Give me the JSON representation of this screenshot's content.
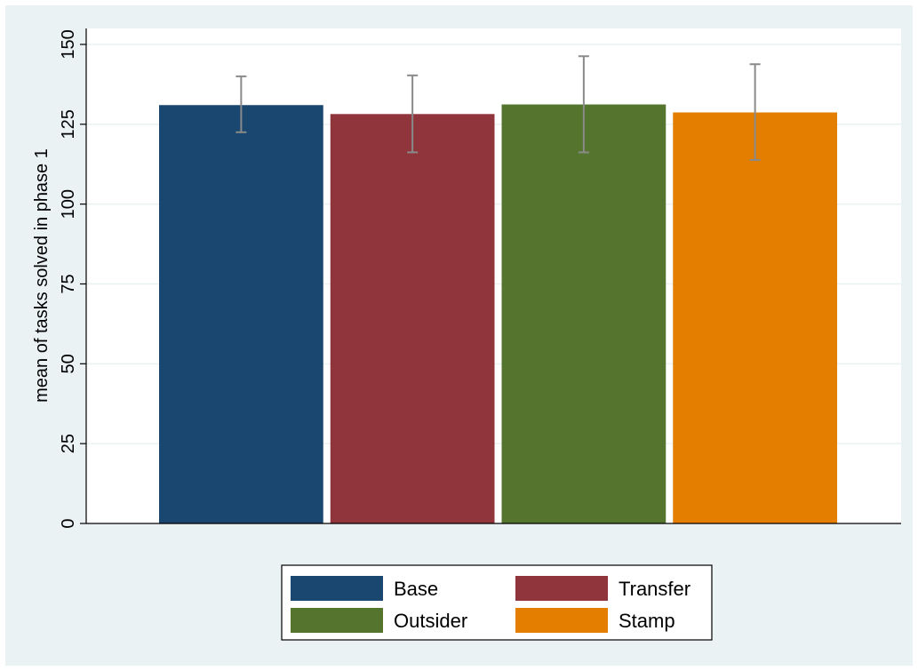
{
  "chart_data": {
    "type": "bar",
    "title": "",
    "xlabel": "",
    "ylabel": "mean of tasks solved in phase 1",
    "ylim": [
      0,
      155
    ],
    "yticks": [
      0,
      25,
      50,
      75,
      100,
      125,
      150
    ],
    "grid": true,
    "legend_position": "bottom",
    "series": [
      {
        "name": "Base",
        "value": 131.0,
        "ci": [
          122.5,
          140.0
        ],
        "color": "#1a476f"
      },
      {
        "name": "Transfer",
        "value": 128.2,
        "ci": [
          116.2,
          140.3
        ],
        "color": "#90353b"
      },
      {
        "name": "Outsider",
        "value": 131.2,
        "ci": [
          116.2,
          146.3
        ],
        "color": "#55752f"
      },
      {
        "name": "Stamp",
        "value": 128.7,
        "ci": [
          113.8,
          143.8
        ],
        "color": "#e37e00"
      }
    ]
  },
  "colors": {
    "background": "#eaf2f3",
    "plot_area": "#ffffff",
    "gridline": "#eaf2f3",
    "errorbar": "#8a8a8a"
  }
}
